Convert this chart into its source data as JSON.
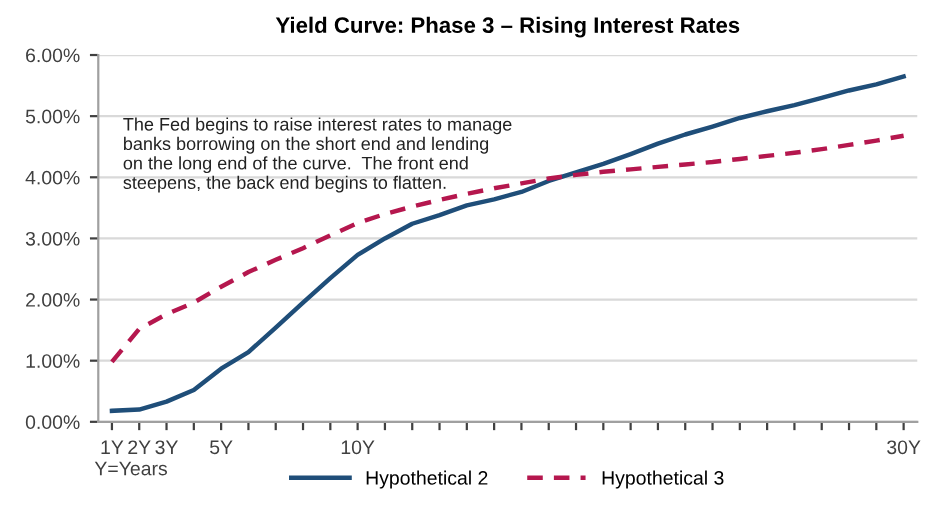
{
  "chart_data": {
    "type": "line",
    "title": "Yield Curve: Phase 3 – Rising Interest Rates",
    "categories": [
      "1Y",
      "2Y",
      "3Y",
      null,
      "5Y",
      null,
      null,
      null,
      null,
      "10Y",
      null,
      null,
      null,
      null,
      null,
      null,
      null,
      null,
      null,
      null,
      null,
      null,
      null,
      null,
      null,
      null,
      null,
      null,
      null,
      "30Y"
    ],
    "series": [
      {
        "name": "Hypothetical 2",
        "color": "#1f4e79",
        "line_style": "solid",
        "values": [
          0.18,
          0.2,
          0.33,
          0.52,
          0.87,
          1.14,
          1.54,
          1.95,
          2.35,
          2.73,
          3.0,
          3.24,
          3.38,
          3.54,
          3.64,
          3.76,
          3.94,
          4.08,
          4.22,
          4.38,
          4.55,
          4.7,
          4.83,
          4.97,
          5.08,
          5.18,
          5.3,
          5.42,
          5.52,
          5.65
        ]
      },
      {
        "name": "Hypothetical 3",
        "color": "#b5174e",
        "line_style": "dashed",
        "values": [
          0.98,
          1.52,
          1.76,
          1.95,
          2.21,
          2.45,
          2.65,
          2.84,
          3.05,
          3.25,
          3.4,
          3.52,
          3.63,
          3.73,
          3.82,
          3.9,
          3.98,
          4.04,
          4.09,
          4.13,
          4.17,
          4.21,
          4.25,
          4.3,
          4.35,
          4.4,
          4.46,
          4.53,
          4.6,
          4.68
        ]
      }
    ],
    "ylim": [
      0,
      6
    ],
    "yticks": [
      {
        "value": 0,
        "label": "0.00%"
      },
      {
        "value": 1,
        "label": "1.00%"
      },
      {
        "value": 2,
        "label": "2.00%"
      },
      {
        "value": 3,
        "label": "3.00%"
      },
      {
        "value": 4,
        "label": "4.00%"
      },
      {
        "value": 5,
        "label": "5.00%"
      },
      {
        "value": 6,
        "label": "6.00%"
      }
    ],
    "grid": "y",
    "legend": "bottom",
    "annotations": [
      "The Fed begins to raise interest rates to manage\nbanks borrowing on the short end and lending\non the long end of the curve.  The front end\nsteepens, the back end begins to flatten.",
      "Y=Years"
    ]
  }
}
